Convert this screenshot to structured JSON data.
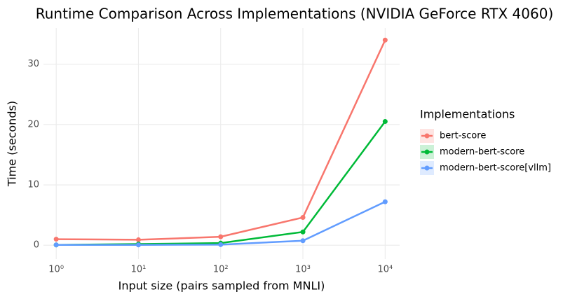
{
  "chart_data": {
    "type": "line",
    "title": "Runtime Comparison Across Implementations (NVIDIA GeForce RTX 4060)",
    "x_label": "Input size (pairs sampled from MNLI)",
    "y_label": "Time (seconds)",
    "legend_title": "Implementations",
    "legend_position": "right",
    "x_log": true,
    "grid": true,
    "x": [
      1,
      10,
      100,
      1000,
      10000
    ],
    "xlim": [
      0.7,
      15000
    ],
    "xticks": [
      {
        "value": 1,
        "label": "10⁰"
      },
      {
        "value": 10,
        "label": "10¹"
      },
      {
        "value": 100,
        "label": "10²"
      },
      {
        "value": 1000,
        "label": "10³"
      },
      {
        "value": 10000,
        "label": "10⁴"
      }
    ],
    "ylim": [
      -2.3,
      36
    ],
    "yticks": [
      0,
      10,
      20,
      30
    ],
    "series": [
      {
        "name": "bert-score",
        "color": "#f8766d",
        "values": [
          1.0,
          0.9,
          1.4,
          4.6,
          34.0
        ]
      },
      {
        "name": "modern-bert-score",
        "color": "#00ba38",
        "values": [
          0.05,
          0.2,
          0.35,
          2.2,
          20.5
        ]
      },
      {
        "name": "modern-bert-score[vllm]",
        "color": "#619cff",
        "values": [
          0.05,
          0.05,
          0.1,
          0.75,
          7.2
        ]
      }
    ]
  }
}
